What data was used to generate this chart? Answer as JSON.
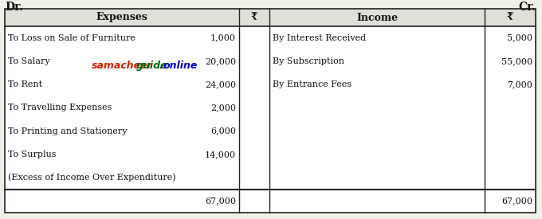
{
  "title_left": "Dr.",
  "title_right": "Cr.",
  "header_left": [
    "Expenses",
    "₹"
  ],
  "header_right": [
    "Income",
    "₹"
  ],
  "left_rows": [
    [
      "To Loss on Sale of Furniture",
      "1,000"
    ],
    [
      "To Salary",
      "20,000"
    ],
    [
      "To Rent",
      "24,000"
    ],
    [
      "To Travelling Expenses",
      "2,000"
    ],
    [
      "To Printing and Stationery",
      "6,000"
    ],
    [
      "To Surplus",
      "14,000"
    ],
    [
      "(Excess of Income Over Expenditure)",
      ""
    ],
    [
      "",
      "67,000"
    ]
  ],
  "right_rows": [
    [
      "By Interest Received",
      "5,000"
    ],
    [
      "By Subscription",
      "55,000"
    ],
    [
      "By Entrance Fees",
      "7,000"
    ],
    [
      "",
      ""
    ],
    [
      "",
      ""
    ],
    [
      "",
      ""
    ],
    [
      "",
      ""
    ],
    [
      "",
      "67,000"
    ]
  ],
  "wm1": "samacheer",
  "wm2": "guide",
  "wm3": ".",
  "wm4": "online",
  "wm1_color": "#cc2200",
  "wm2_color": "#006600",
  "wm3_color": "#222222",
  "wm4_color": "#0000cc",
  "bg_color": "#f0efe8",
  "header_bg": "#e0e0d8",
  "border_color": "#222222",
  "text_color": "#111111"
}
